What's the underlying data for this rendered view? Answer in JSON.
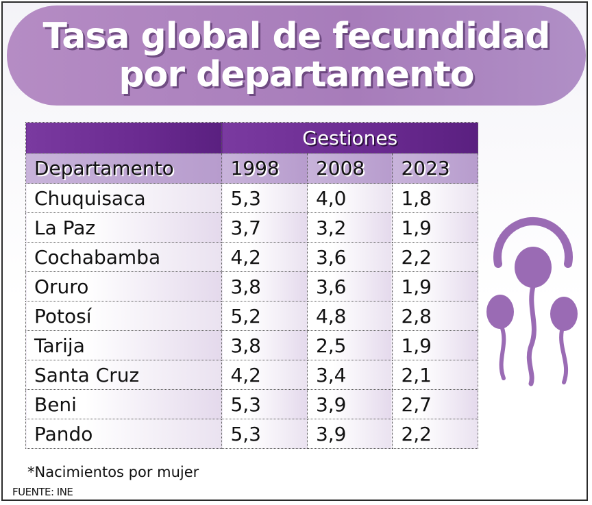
{
  "title": {
    "line1": "Tasa global de fecundidad",
    "line2": "por departamento"
  },
  "table": {
    "group_header": "Gestiones",
    "columns": [
      "Departamento",
      "1998",
      "2008",
      "2023"
    ],
    "rows": [
      [
        "Chuquisaca",
        "5,3",
        "4,0",
        "1,8"
      ],
      [
        "La Paz",
        "3,7",
        "3,2",
        "1,9"
      ],
      [
        "Cochabamba",
        "4,2",
        "3,6",
        "2,2"
      ],
      [
        "Oruro",
        "3,8",
        "3,6",
        "1,9"
      ],
      [
        "Potosí",
        "5,2",
        "4,8",
        "2,8"
      ],
      [
        "Tarija",
        "3,8",
        "2,5",
        "1,9"
      ],
      [
        "Santa Cruz",
        "4,2",
        "3,4",
        "2,1"
      ],
      [
        "Beni",
        "5,3",
        "3,9",
        "2,7"
      ],
      [
        "Pando",
        "5,3",
        "3,9",
        "2,2"
      ]
    ]
  },
  "note": "*Nacimientos por mujer",
  "source": "FUENTE: INE",
  "colors": {
    "accent": "#a77cba",
    "header_dark": "#6a2a90",
    "icon": "#9a6bb4"
  },
  "icon_name": "sperm-icon"
}
